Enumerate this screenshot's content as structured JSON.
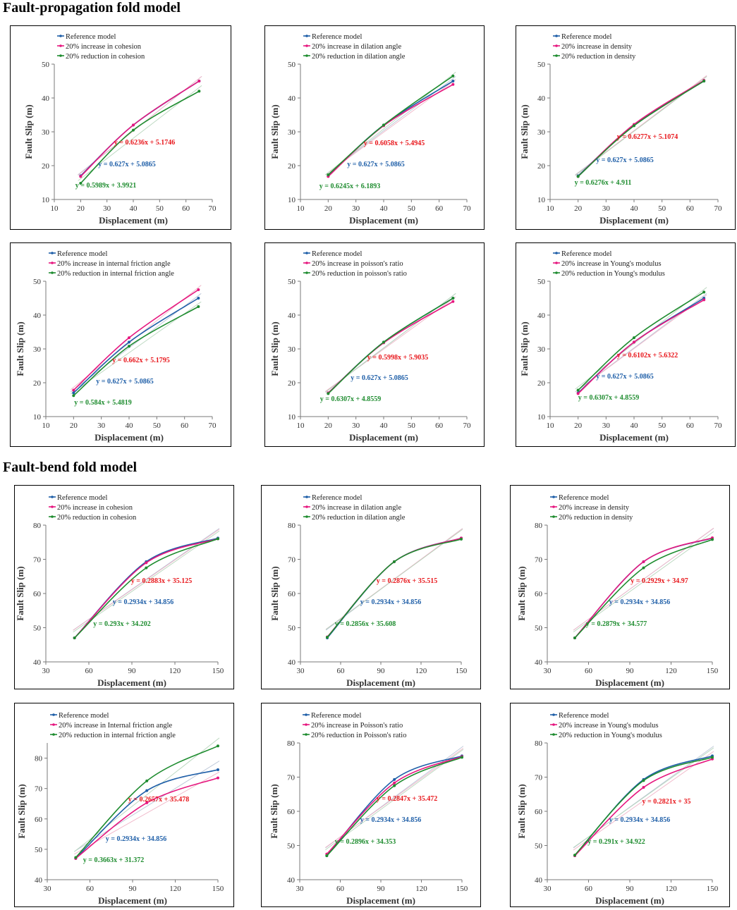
{
  "sections": [
    {
      "title": "Fault-propagation fold model"
    },
    {
      "title": "Fault-bend fold model"
    }
  ],
  "colors": {
    "reference": "#1f5fa8",
    "increase": "#e6177f",
    "reduction": "#1e8c2f",
    "eq_increase": "#e8161b",
    "eq_reference": "#1f5fa8",
    "eq_reduction": "#1e8c2f"
  },
  "chart_data": [
    {
      "type": "line",
      "title": "",
      "xlabel": "Displacement (m)",
      "ylabel": "Fault Slip (m)",
      "xlim": [
        10,
        70
      ],
      "xticks": [
        10,
        20,
        30,
        40,
        50,
        60,
        70
      ],
      "ylim": [
        10,
        50
      ],
      "yticks": [
        10,
        20,
        30,
        40,
        50
      ],
      "series": [
        {
          "name": "Reference model",
          "x": [
            20,
            40,
            65
          ],
          "values": [
            17,
            32,
            45
          ]
        },
        {
          "name": "20% increase in cohesion",
          "x": [
            20,
            40,
            65
          ],
          "values": [
            16.8,
            32,
            45
          ]
        },
        {
          "name": "20% reduction in cohesion",
          "x": [
            20,
            40,
            65
          ],
          "values": [
            14.8,
            30.5,
            42
          ]
        }
      ],
      "equations": [
        "y = 0.6236x + 5.1746",
        "y = 0.627x + 5.0865",
        "y = 0.5989x + 3.9921"
      ]
    },
    {
      "type": "line",
      "title": "",
      "xlabel": "Displacement (m)",
      "ylabel": "Fault Slip (m)",
      "xlim": [
        10,
        70
      ],
      "xticks": [
        10,
        20,
        30,
        40,
        50,
        60,
        70
      ],
      "ylim": [
        10,
        50
      ],
      "yticks": [
        10,
        20,
        30,
        40,
        50
      ],
      "series": [
        {
          "name": "Reference model",
          "x": [
            20,
            40,
            65
          ],
          "values": [
            17,
            32,
            45
          ]
        },
        {
          "name": "20% increase in dilation angle",
          "x": [
            20,
            40,
            65
          ],
          "values": [
            16.8,
            31.8,
            44
          ]
        },
        {
          "name": "20% reduction in dilation angle",
          "x": [
            20,
            40,
            65
          ],
          "values": [
            17.3,
            32,
            46.5
          ]
        }
      ],
      "equations": [
        "y = 0.6058x + 5.4945",
        "y = 0.627x + 5.0865",
        "y = 0.6245x + 6.1893"
      ]
    },
    {
      "type": "line",
      "title": "",
      "xlabel": "Displacement (m)",
      "ylabel": "Fault Slip (m)",
      "xlim": [
        10,
        70
      ],
      "xticks": [
        10,
        20,
        30,
        40,
        50,
        60,
        70
      ],
      "ylim": [
        10,
        50
      ],
      "yticks": [
        10,
        20,
        30,
        40,
        50
      ],
      "series": [
        {
          "name": "Reference model",
          "x": [
            20,
            40,
            65
          ],
          "values": [
            17,
            32,
            45
          ]
        },
        {
          "name": "20% increase in density",
          "x": [
            20,
            40,
            65
          ],
          "values": [
            16.8,
            32.2,
            45.2
          ]
        },
        {
          "name": "20% reduction in density",
          "x": [
            20,
            40,
            65
          ],
          "values": [
            16.8,
            31.8,
            45
          ]
        }
      ],
      "equations": [
        "y = 0.6277x + 5.1074",
        "y = 0.627x + 5.0865",
        "y = 0.6276x + 4.911"
      ]
    },
    {
      "type": "line",
      "title": "",
      "xlabel": "Displacement (m)",
      "ylabel": "Fault Slip (m)",
      "xlim": [
        10,
        70
      ],
      "xticks": [
        10,
        20,
        30,
        40,
        50,
        60,
        70
      ],
      "ylim": [
        10,
        50
      ],
      "yticks": [
        10,
        20,
        30,
        40,
        50
      ],
      "series": [
        {
          "name": "Reference model",
          "x": [
            20,
            40,
            65
          ],
          "values": [
            17,
            32,
            45
          ]
        },
        {
          "name": "20% increase in internal friction angle",
          "x": [
            20,
            40,
            65
          ],
          "values": [
            17.8,
            33.3,
            47.5
          ]
        },
        {
          "name": "20% reduction in internal friction angle",
          "x": [
            20,
            40,
            65
          ],
          "values": [
            16.2,
            30.8,
            42.5
          ]
        }
      ],
      "equations": [
        "y = 0.662x + 5.1795",
        "y = 0.627x + 5.0865",
        "y = 0.584x + 5.4819"
      ]
    },
    {
      "type": "line",
      "title": "",
      "xlabel": "Displacement (m)",
      "ylabel": "Fault Slip (m)",
      "xlim": [
        10,
        70
      ],
      "xticks": [
        10,
        20,
        30,
        40,
        50,
        60,
        70
      ],
      "ylim": [
        10,
        50
      ],
      "yticks": [
        10,
        20,
        30,
        40,
        50
      ],
      "series": [
        {
          "name": "Reference model",
          "x": [
            20,
            40,
            65
          ],
          "values": [
            17,
            32,
            45
          ]
        },
        {
          "name": "20% increase in poisson's ratio",
          "x": [
            20,
            40,
            65
          ],
          "values": [
            17,
            31.8,
            44
          ]
        },
        {
          "name": "20% reduction in poisson's ratio",
          "x": [
            20,
            40,
            65
          ],
          "values": [
            16.8,
            32,
            45
          ]
        }
      ],
      "equations": [
        "y = 0.5998x + 5.9035",
        "y = 0.627x + 5.0865",
        "y = 0.6307x + 4.8559"
      ]
    },
    {
      "type": "line",
      "title": "",
      "xlabel": "Displacement (m)",
      "ylabel": "Fault Slip (m)",
      "xlim": [
        10,
        70
      ],
      "xticks": [
        10,
        20,
        30,
        40,
        50,
        60,
        70
      ],
      "ylim": [
        10,
        50
      ],
      "yticks": [
        10,
        20,
        30,
        40,
        50
      ],
      "series": [
        {
          "name": "Reference model",
          "x": [
            20,
            40,
            65
          ],
          "values": [
            17,
            32,
            45
          ]
        },
        {
          "name": "20% increase in Young's modulus",
          "x": [
            20,
            40,
            65
          ],
          "values": [
            16.8,
            32,
            44.5
          ]
        },
        {
          "name": "20% reduction in Young's modulus",
          "x": [
            20,
            40,
            65
          ],
          "values": [
            17.8,
            33.3,
            46.8
          ]
        }
      ],
      "equations": [
        "y = 0.6102x + 5.6322",
        "y = 0.627x + 5.0865",
        "y = 0.6307x + 4.8559"
      ]
    },
    {
      "type": "line",
      "title": "",
      "xlabel": "Displacement (m)",
      "ylabel": "Fault Slip (m)",
      "xlim": [
        30,
        150
      ],
      "xticks": [
        30,
        60,
        90,
        120,
        150
      ],
      "ylim": [
        40,
        80
      ],
      "yticks": [
        40,
        50,
        60,
        70,
        80
      ],
      "series": [
        {
          "name": "Reference model",
          "x": [
            50,
            100,
            150
          ],
          "values": [
            47,
            69.3,
            76.2
          ]
        },
        {
          "name": "20% increase in cohesion",
          "x": [
            50,
            100,
            150
          ],
          "values": [
            47,
            69,
            76
          ]
        },
        {
          "name": "20% reduction in cohesion",
          "x": [
            50,
            100,
            150
          ],
          "values": [
            47,
            67.5,
            76
          ]
        }
      ],
      "equations": [
        "y = 0.2883x + 35.125",
        "y = 0.2934x + 34.856",
        "y = 0.293x + 34.202"
      ]
    },
    {
      "type": "line",
      "title": "",
      "xlabel": "Displacement (m)",
      "ylabel": "Fault Slip (m)",
      "xlim": [
        30,
        150
      ],
      "xticks": [
        30,
        60,
        90,
        120,
        150
      ],
      "ylim": [
        40,
        80
      ],
      "yticks": [
        40,
        50,
        60,
        70,
        80
      ],
      "series": [
        {
          "name": "Reference model",
          "x": [
            50,
            100,
            150
          ],
          "values": [
            47,
            69.3,
            76.2
          ]
        },
        {
          "name": "20% increase in dilation angle",
          "x": [
            50,
            100,
            150
          ],
          "values": [
            47.3,
            69.3,
            76.2
          ]
        },
        {
          "name": "20% reduction in dilation angle",
          "x": [
            50,
            100,
            150
          ],
          "values": [
            47.2,
            69.3,
            75.9
          ]
        }
      ],
      "equations": [
        "y = 0.2876x + 35.515",
        "y = 0.2934x + 34.856",
        "y = 0.2856x + 35.608"
      ]
    },
    {
      "type": "line",
      "title": "",
      "xlabel": "Displacement (m)",
      "ylabel": "Fault Slip (m)",
      "xlim": [
        30,
        150
      ],
      "xticks": [
        30,
        60,
        90,
        120,
        150
      ],
      "ylim": [
        40,
        80
      ],
      "yticks": [
        40,
        50,
        60,
        70,
        80
      ],
      "series": [
        {
          "name": "Reference model",
          "x": [
            50,
            100,
            150
          ],
          "values": [
            47,
            69.3,
            76.2
          ]
        },
        {
          "name": "20% increase in density",
          "x": [
            50,
            100,
            150
          ],
          "values": [
            47,
            69.3,
            76.3
          ]
        },
        {
          "name": "20% reduction in density",
          "x": [
            50,
            100,
            150
          ],
          "values": [
            47,
            67.5,
            75.8
          ]
        }
      ],
      "equations": [
        "y = 0.2929x + 34.97",
        "y = 0.2934x + 34.856",
        "y = 0.2879x + 34.577"
      ]
    },
    {
      "type": "line",
      "title": "",
      "xlabel": "Displacement (m)",
      "ylabel": "Fault Slip (m)",
      "xlim": [
        30,
        150
      ],
      "xticks": [
        30,
        60,
        90,
        120,
        150
      ],
      "ylim": [
        40,
        85
      ],
      "yticks": [
        40,
        50,
        60,
        70,
        80
      ],
      "series": [
        {
          "name": "Reference model",
          "x": [
            50,
            100,
            150
          ],
          "values": [
            47,
            69.3,
            76.2
          ]
        },
        {
          "name": "20% increase in Internal friction angle",
          "x": [
            50,
            100,
            150
          ],
          "values": [
            47,
            65.3,
            73.5
          ]
        },
        {
          "name": "20% reduction in internal friction angle",
          "x": [
            50,
            100,
            150
          ],
          "values": [
            47.3,
            72.5,
            84
          ]
        }
      ],
      "equations": [
        "y = 0.2657x + 35.478",
        "y = 0.2934x + 34.856",
        "y = 0.3663x + 31.372"
      ]
    },
    {
      "type": "line",
      "title": "",
      "xlabel": "Displacement (m)",
      "ylabel": "Fault Slip (m)",
      "xlim": [
        30,
        150
      ],
      "xticks": [
        30,
        60,
        90,
        120,
        150
      ],
      "ylim": [
        40,
        80
      ],
      "yticks": [
        40,
        50,
        60,
        70,
        80
      ],
      "series": [
        {
          "name": "Reference model",
          "x": [
            50,
            100,
            150
          ],
          "values": [
            47,
            69.3,
            76.2
          ]
        },
        {
          "name": "20% increase in Poisson's ratio",
          "x": [
            50,
            100,
            150
          ],
          "values": [
            47.5,
            68.3,
            76
          ]
        },
        {
          "name": "20% reduction in Poisson's ratio",
          "x": [
            50,
            100,
            150
          ],
          "values": [
            47,
            67.5,
            75.8
          ]
        }
      ],
      "equations": [
        "y = 0.2847x + 35.472",
        "y = 0.2934x + 34.856",
        "y = 0.2896x + 34.353"
      ]
    },
    {
      "type": "line",
      "title": "",
      "xlabel": "Displacement (m)",
      "ylabel": "Fault Slip (m)",
      "xlim": [
        30,
        150
      ],
      "xticks": [
        30,
        60,
        90,
        120,
        150
      ],
      "ylim": [
        40,
        80
      ],
      "yticks": [
        40,
        50,
        60,
        70,
        80
      ],
      "series": [
        {
          "name": "Reference model",
          "x": [
            50,
            100,
            150
          ],
          "values": [
            47,
            69.3,
            76.2
          ]
        },
        {
          "name": "20% increase in Young's modulus",
          "x": [
            50,
            100,
            150
          ],
          "values": [
            47,
            67,
            75.3
          ]
        },
        {
          "name": "20% reduction in Young's modulus",
          "x": [
            50,
            100,
            150
          ],
          "values": [
            47.2,
            69,
            75.8
          ]
        }
      ],
      "equations": [
        "y = 0.2821x + 35",
        "y = 0.2934x + 34.856",
        "y = 0.291x + 34.922"
      ]
    }
  ]
}
